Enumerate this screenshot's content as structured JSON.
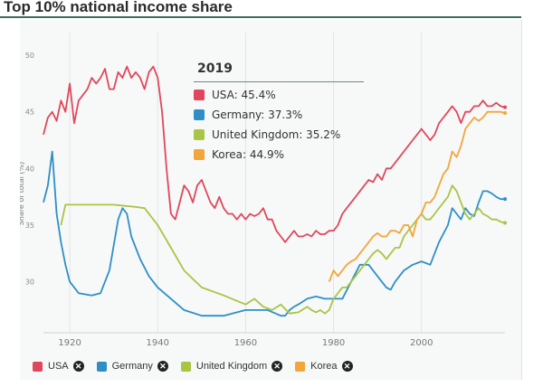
{
  "title": "Top 10% national income share",
  "colors": {
    "USA": "#e0475c",
    "Germany": "#2e8fc7",
    "United Kingdom": "#a8c545",
    "Korea": "#f2a63a"
  },
  "tooltip": {
    "year": "2019",
    "rows": [
      {
        "text": "USA: 45.4%",
        "color": "#e0475c"
      },
      {
        "text": "Germany: 37.3%",
        "color": "#2e8fc7"
      },
      {
        "text": "United Kingdom: 35.2%",
        "color": "#a8c545"
      },
      {
        "text": "Korea: 44.9%",
        "color": "#f2a63a"
      }
    ]
  },
  "legend": [
    {
      "label": "USA",
      "color": "#e0475c"
    },
    {
      "label": "Germany",
      "color": "#2e8fc7"
    },
    {
      "label": "United Kingdom",
      "color": "#a8c545"
    },
    {
      "label": "Korea",
      "color": "#f2a63a"
    }
  ],
  "chart_data": {
    "type": "line",
    "title": "",
    "ylabel": "Share of total (%)",
    "xlabel": "",
    "xlim": [
      1914,
      2019
    ],
    "ylim": [
      25.5,
      52
    ],
    "xticks": [
      1920,
      1940,
      1960,
      1980,
      2000
    ],
    "yticks": [
      30,
      35,
      40,
      45,
      50
    ],
    "grid": "vertical",
    "legend_position": "bottom",
    "series": [
      {
        "name": "USA",
        "color": "#e0475c",
        "points": [
          [
            1914,
            43
          ],
          [
            1915,
            44.5
          ],
          [
            1916,
            45
          ],
          [
            1917,
            44.2
          ],
          [
            1918,
            46
          ],
          [
            1919,
            45
          ],
          [
            1920,
            47.5
          ],
          [
            1921,
            44
          ],
          [
            1922,
            46
          ],
          [
            1923,
            46.5
          ],
          [
            1924,
            47
          ],
          [
            1925,
            48
          ],
          [
            1926,
            47.5
          ],
          [
            1927,
            48
          ],
          [
            1928,
            48.8
          ],
          [
            1929,
            47
          ],
          [
            1930,
            47
          ],
          [
            1931,
            48.5
          ],
          [
            1932,
            48
          ],
          [
            1933,
            49
          ],
          [
            1934,
            48
          ],
          [
            1935,
            48.5
          ],
          [
            1936,
            48
          ],
          [
            1937,
            47
          ],
          [
            1938,
            48.5
          ],
          [
            1939,
            49
          ],
          [
            1940,
            48
          ],
          [
            1941,
            45
          ],
          [
            1942,
            40
          ],
          [
            1943,
            36
          ],
          [
            1944,
            35.5
          ],
          [
            1945,
            37
          ],
          [
            1946,
            38.5
          ],
          [
            1947,
            38
          ],
          [
            1948,
            37
          ],
          [
            1949,
            38.5
          ],
          [
            1950,
            39
          ],
          [
            1951,
            38
          ],
          [
            1952,
            37
          ],
          [
            1953,
            36.5
          ],
          [
            1954,
            37.5
          ],
          [
            1955,
            36.5
          ],
          [
            1956,
            36
          ],
          [
            1957,
            36
          ],
          [
            1958,
            35.5
          ],
          [
            1959,
            36
          ],
          [
            1960,
            35.5
          ],
          [
            1961,
            36
          ],
          [
            1962,
            35.8
          ],
          [
            1963,
            36
          ],
          [
            1964,
            36.5
          ],
          [
            1965,
            35.5
          ],
          [
            1966,
            35.5
          ],
          [
            1967,
            34.5
          ],
          [
            1968,
            34
          ],
          [
            1969,
            33.5
          ],
          [
            1970,
            34
          ],
          [
            1971,
            34.5
          ],
          [
            1972,
            34
          ],
          [
            1973,
            34
          ],
          [
            1974,
            34.2
          ],
          [
            1975,
            34
          ],
          [
            1976,
            34.5
          ],
          [
            1977,
            34.2
          ],
          [
            1978,
            34.2
          ],
          [
            1979,
            34.5
          ],
          [
            1980,
            34.5
          ],
          [
            1981,
            35
          ],
          [
            1982,
            36
          ],
          [
            1983,
            36.5
          ],
          [
            1984,
            37
          ],
          [
            1985,
            37.5
          ],
          [
            1986,
            38
          ],
          [
            1987,
            38.5
          ],
          [
            1988,
            39
          ],
          [
            1989,
            38.8
          ],
          [
            1990,
            39.5
          ],
          [
            1991,
            39
          ],
          [
            1992,
            40
          ],
          [
            1993,
            40
          ],
          [
            1994,
            40.5
          ],
          [
            1995,
            41
          ],
          [
            1996,
            41.5
          ],
          [
            1997,
            42
          ],
          [
            1998,
            42.5
          ],
          [
            1999,
            43
          ],
          [
            2000,
            43.5
          ],
          [
            2001,
            43
          ],
          [
            2002,
            42.5
          ],
          [
            2003,
            43
          ],
          [
            2004,
            44
          ],
          [
            2005,
            44.5
          ],
          [
            2006,
            45
          ],
          [
            2007,
            45.5
          ],
          [
            2008,
            45
          ],
          [
            2009,
            44
          ],
          [
            2010,
            45
          ],
          [
            2011,
            45
          ],
          [
            2012,
            45.5
          ],
          [
            2013,
            45.5
          ],
          [
            2014,
            46
          ],
          [
            2015,
            45.5
          ],
          [
            2016,
            45.5
          ],
          [
            2017,
            45.8
          ],
          [
            2018,
            45.5
          ],
          [
            2019,
            45.4
          ]
        ]
      },
      {
        "name": "Germany",
        "color": "#2e8fc7",
        "points": [
          [
            1914,
            37
          ],
          [
            1915,
            38.5
          ],
          [
            1916,
            41.5
          ],
          [
            1917,
            36
          ],
          [
            1918,
            33.5
          ],
          [
            1919,
            31.5
          ],
          [
            1920,
            30
          ],
          [
            1922,
            29
          ],
          [
            1925,
            28.8
          ],
          [
            1927,
            29
          ],
          [
            1929,
            31
          ],
          [
            1931,
            35.5
          ],
          [
            1932,
            36.5
          ],
          [
            1933,
            36
          ],
          [
            1934,
            34
          ],
          [
            1936,
            32
          ],
          [
            1938,
            30.5
          ],
          [
            1940,
            29.5
          ],
          [
            1943,
            28.5
          ],
          [
            1946,
            27.5
          ],
          [
            1950,
            27
          ],
          [
            1955,
            27
          ],
          [
            1960,
            27.5
          ],
          [
            1965,
            27.5
          ],
          [
            1968,
            27
          ],
          [
            1969,
            27
          ],
          [
            1970,
            27.5
          ],
          [
            1971,
            27.8
          ],
          [
            1972,
            28
          ],
          [
            1974,
            28.5
          ],
          [
            1976,
            28.7
          ],
          [
            1978,
            28.5
          ],
          [
            1980,
            28.5
          ],
          [
            1982,
            28.5
          ],
          [
            1984,
            30
          ],
          [
            1986,
            31.5
          ],
          [
            1988,
            31.5
          ],
          [
            1990,
            30.5
          ],
          [
            1992,
            29.5
          ],
          [
            1993,
            29.3
          ],
          [
            1994,
            30
          ],
          [
            1996,
            31
          ],
          [
            1998,
            31.5
          ],
          [
            2000,
            31.8
          ],
          [
            2002,
            31.5
          ],
          [
            2004,
            33.5
          ],
          [
            2006,
            35
          ],
          [
            2007,
            36.5
          ],
          [
            2008,
            36
          ],
          [
            2009,
            35.5
          ],
          [
            2010,
            36.5
          ],
          [
            2011,
            36
          ],
          [
            2012,
            35.8
          ],
          [
            2013,
            37
          ],
          [
            2014,
            38
          ],
          [
            2015,
            38
          ],
          [
            2016,
            37.8
          ],
          [
            2017,
            37.5
          ],
          [
            2018,
            37.3
          ],
          [
            2019,
            37.3
          ]
        ]
      },
      {
        "name": "United Kingdom",
        "color": "#a8c545",
        "points": [
          [
            1918,
            35
          ],
          [
            1919,
            36.8
          ],
          [
            1925,
            36.8
          ],
          [
            1930,
            36.8
          ],
          [
            1935,
            36.6
          ],
          [
            1937,
            36.5
          ],
          [
            1940,
            35
          ],
          [
            1943,
            33
          ],
          [
            1946,
            31
          ],
          [
            1950,
            29.5
          ],
          [
            1955,
            28.8
          ],
          [
            1960,
            28
          ],
          [
            1962,
            28.5
          ],
          [
            1964,
            27.8
          ],
          [
            1966,
            27.5
          ],
          [
            1968,
            28
          ],
          [
            1970,
            27.2
          ],
          [
            1972,
            27.3
          ],
          [
            1974,
            27.8
          ],
          [
            1975,
            27.5
          ],
          [
            1976,
            27.3
          ],
          [
            1977,
            27.5
          ],
          [
            1978,
            27.2
          ],
          [
            1979,
            27.5
          ],
          [
            1980,
            28.5
          ],
          [
            1981,
            29
          ],
          [
            1982,
            29.5
          ],
          [
            1983,
            29.5
          ],
          [
            1984,
            30
          ],
          [
            1985,
            30.5
          ],
          [
            1986,
            31
          ],
          [
            1987,
            31.5
          ],
          [
            1988,
            32
          ],
          [
            1989,
            32.5
          ],
          [
            1990,
            32.8
          ],
          [
            1991,
            32.5
          ],
          [
            1992,
            32
          ],
          [
            1993,
            32.5
          ],
          [
            1994,
            33
          ],
          [
            1995,
            33
          ],
          [
            1996,
            34
          ],
          [
            1997,
            34.5
          ],
          [
            1998,
            35
          ],
          [
            1999,
            35.5
          ],
          [
            2000,
            36
          ],
          [
            2001,
            35.5
          ],
          [
            2002,
            35.5
          ],
          [
            2003,
            36
          ],
          [
            2004,
            36.5
          ],
          [
            2005,
            37
          ],
          [
            2006,
            37.5
          ],
          [
            2007,
            38.5
          ],
          [
            2008,
            38
          ],
          [
            2009,
            37
          ],
          [
            2010,
            36
          ],
          [
            2011,
            35.5
          ],
          [
            2012,
            36
          ],
          [
            2013,
            36.5
          ],
          [
            2014,
            36
          ],
          [
            2015,
            35.8
          ],
          [
            2016,
            35.5
          ],
          [
            2017,
            35.5
          ],
          [
            2018,
            35.3
          ],
          [
            2019,
            35.2
          ]
        ]
      },
      {
        "name": "Korea",
        "color": "#f2a63a",
        "points": [
          [
            1979,
            30
          ],
          [
            1980,
            31
          ],
          [
            1981,
            30.5
          ],
          [
            1982,
            31
          ],
          [
            1983,
            31.5
          ],
          [
            1984,
            31.8
          ],
          [
            1985,
            32
          ],
          [
            1986,
            32.5
          ],
          [
            1987,
            33
          ],
          [
            1988,
            33.5
          ],
          [
            1989,
            34
          ],
          [
            1990,
            34.3
          ],
          [
            1991,
            34
          ],
          [
            1992,
            34
          ],
          [
            1993,
            34.5
          ],
          [
            1994,
            34.5
          ],
          [
            1995,
            34.3
          ],
          [
            1996,
            35
          ],
          [
            1997,
            35
          ],
          [
            1998,
            34
          ],
          [
            1999,
            35.5
          ],
          [
            2000,
            36
          ],
          [
            2001,
            37
          ],
          [
            2002,
            37
          ],
          [
            2003,
            37.5
          ],
          [
            2004,
            38.5
          ],
          [
            2005,
            39.5
          ],
          [
            2006,
            40
          ],
          [
            2007,
            41.5
          ],
          [
            2008,
            41
          ],
          [
            2009,
            42
          ],
          [
            2010,
            43.5
          ],
          [
            2011,
            44
          ],
          [
            2012,
            44.5
          ],
          [
            2013,
            44.2
          ],
          [
            2014,
            44.5
          ],
          [
            2015,
            45
          ],
          [
            2016,
            45
          ],
          [
            2017,
            45
          ],
          [
            2018,
            45
          ],
          [
            2019,
            44.9
          ]
        ]
      }
    ]
  }
}
